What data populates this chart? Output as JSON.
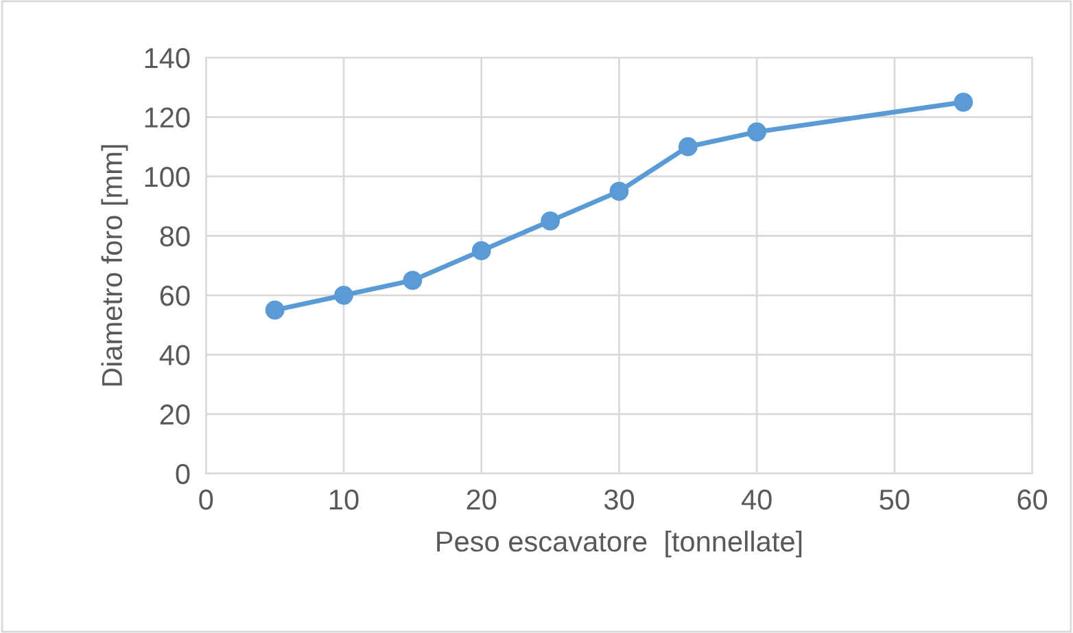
{
  "chart_data": {
    "type": "line",
    "xlabel": "Peso escavatore  [tonnellate]",
    "ylabel": "Diametro foro [mm]",
    "x": [
      5,
      10,
      15,
      20,
      25,
      30,
      35,
      40,
      55
    ],
    "series": [
      {
        "color": "#5b9bd5",
        "values": [
          55,
          60,
          65,
          75,
          85,
          95,
          110,
          115,
          125
        ]
      }
    ],
    "xlim": [
      0,
      60
    ],
    "xticks": [
      0,
      10,
      20,
      30,
      40,
      50,
      60
    ],
    "ylim": [
      0,
      140
    ],
    "yticks": [
      0,
      20,
      40,
      60,
      80,
      100,
      120,
      140
    ],
    "grid": true,
    "marker": "circle",
    "line_style": "solid",
    "legend": false
  }
}
